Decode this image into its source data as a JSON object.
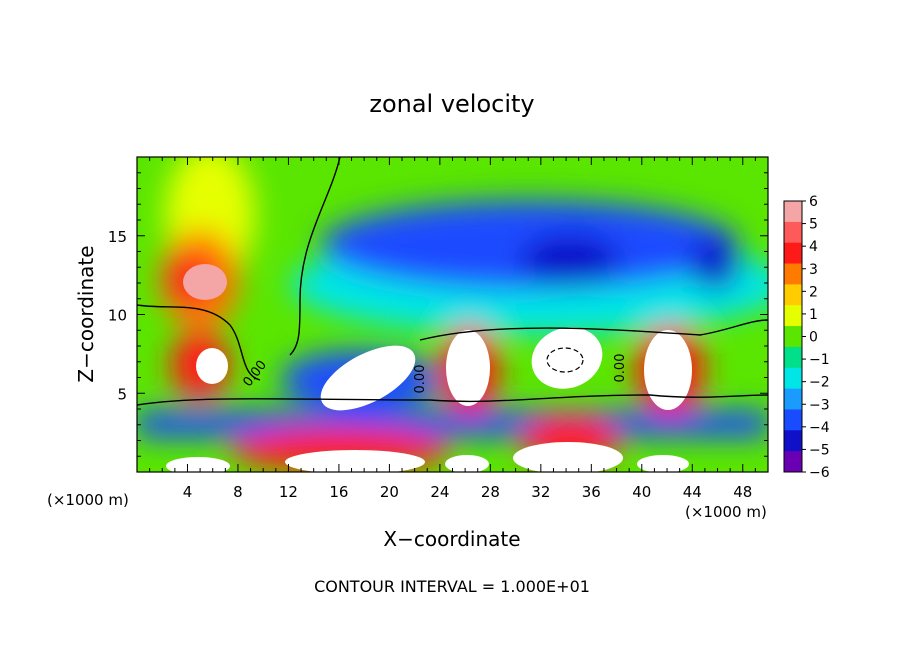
{
  "chart_data": {
    "type": "heatmap",
    "title": "zonal velocity",
    "xlabel": "X−coordinate",
    "ylabel": "Z−coordinate",
    "x_unit_label": "(×1000 m)",
    "x_unit_label_right": "(×1000 m)",
    "xlim": [
      0,
      50
    ],
    "ylim": [
      0,
      20
    ],
    "x_ticks": [
      4,
      8,
      12,
      16,
      20,
      24,
      28,
      32,
      36,
      40,
      44,
      48
    ],
    "x_tick_labels": [
      "4",
      "8",
      "12",
      "16",
      "20",
      "24",
      "28",
      "32",
      "36",
      "40",
      "44",
      "48"
    ],
    "y_ticks": [
      5,
      10,
      15
    ],
    "y_tick_labels": [
      "5",
      "10",
      "15"
    ],
    "colorbar": {
      "min": -6,
      "max": 6,
      "ticks": [
        6,
        5,
        4,
        3,
        2,
        1,
        0,
        -1,
        -2,
        -3,
        -4,
        -5,
        -6
      ],
      "tick_labels": [
        "6",
        "5",
        "4",
        "3",
        "2",
        "1",
        "0",
        "−1",
        "−2",
        "−3",
        "−4",
        "−5",
        "−6"
      ],
      "colors": [
        "#f4a6a6",
        "#ff5a5a",
        "#ff1a1a",
        "#ff7a00",
        "#ffcc00",
        "#e6ff00",
        "#5ae600",
        "#00e08a",
        "#00e6e6",
        "#1a9cff",
        "#1a4cff",
        "#1010c8",
        "#6a00b4"
      ]
    },
    "contour_labels": [
      "0.00",
      "0.00",
      "0.00"
    ],
    "contour_interval_text": "CONTOUR INTERVAL = 1.000E+01"
  }
}
